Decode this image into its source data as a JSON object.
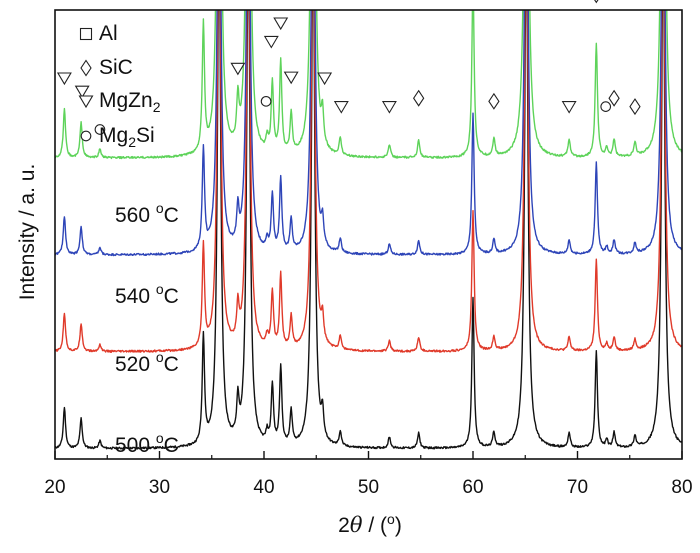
{
  "chart_data": {
    "type": "line",
    "xlabel_parts": {
      "prefix": "2",
      "theta": "θ",
      "sep": " / (",
      "deg": "o",
      "close": ")"
    },
    "ylabel": "Intensity / a. u.",
    "xlim": [
      20,
      80
    ],
    "xticks": [
      "20",
      "30",
      "40",
      "50",
      "60",
      "70",
      "80"
    ],
    "grid": false,
    "legend_position": "top-left (inside plot)",
    "legend": [
      {
        "marker": "square-icon",
        "text": "Al"
      },
      {
        "marker": "diamond-icon",
        "text": "SiC"
      },
      {
        "marker": "triangle-down-icon",
        "text": "MgZn",
        "sub": "2"
      },
      {
        "marker": "circle-icon",
        "text": "Mg",
        "sub": "2",
        "tail": "Si"
      }
    ],
    "series": [
      {
        "name": "560 °C",
        "label_value": "560",
        "label_unit": "C",
        "color": "#5ed35a",
        "offset": 0.66,
        "height_scale": 1.0
      },
      {
        "name": "540 °C",
        "label_value": "540",
        "label_unit": "C",
        "color": "#2e45b8",
        "offset": 0.44,
        "height_scale": 0.8
      },
      {
        "name": "520 °C",
        "label_value": "520",
        "label_unit": "C",
        "color": "#e03a2a",
        "offset": 0.22,
        "height_scale": 0.8
      },
      {
        "name": "500 °C",
        "label_value": "500",
        "label_unit": "C",
        "color": "#111111",
        "offset": 0.0,
        "height_scale": 0.85
      }
    ],
    "peaks": [
      {
        "x": 20.9,
        "h": 0.11,
        "phase": "MgZn2"
      },
      {
        "x": 22.5,
        "h": 0.08,
        "phase": "MgZn2"
      },
      {
        "x": 24.3,
        "h": 0.02,
        "phase": "Mg2Si"
      },
      {
        "x": 34.2,
        "h": 0.29,
        "phase": "SiC"
      },
      {
        "x": 35.7,
        "h": 1.4,
        "phase": "SiC"
      },
      {
        "x": 37.5,
        "h": 0.1,
        "phase": "MgZn2"
      },
      {
        "x": 38.5,
        "h": 1.4,
        "phase": "Al"
      },
      {
        "x": 40.3,
        "h": 0.03,
        "phase": "Mg2Si"
      },
      {
        "x": 40.8,
        "h": 0.16,
        "phase": "MgZn2"
      },
      {
        "x": 41.6,
        "h": 0.21,
        "phase": "MgZn2"
      },
      {
        "x": 42.6,
        "h": 0.09,
        "phase": "MgZn2"
      },
      {
        "x": 44.7,
        "h": 1.4,
        "phase": "Al"
      },
      {
        "x": 45.6,
        "h": 0.07,
        "phase": "MgZn2"
      },
      {
        "x": 47.3,
        "h": 0.04,
        "phase": "MgZn2"
      },
      {
        "x": 52.0,
        "h": 0.03,
        "phase": "MgZn2"
      },
      {
        "x": 54.8,
        "h": 0.04,
        "phase": "SiC"
      },
      {
        "x": 60.0,
        "h": 0.4,
        "phase": "SiC"
      },
      {
        "x": 62.0,
        "h": 0.04,
        "phase": "SiC"
      },
      {
        "x": 65.1,
        "h": 1.4,
        "phase": "Al"
      },
      {
        "x": 69.2,
        "h": 0.04,
        "phase": "MgZn2"
      },
      {
        "x": 71.8,
        "h": 0.26,
        "phase": "SiC"
      },
      {
        "x": 72.8,
        "h": 0.02,
        "phase": "Mg2Si"
      },
      {
        "x": 73.5,
        "h": 0.04,
        "phase": "SiC"
      },
      {
        "x": 75.5,
        "h": 0.03,
        "phase": "SiC"
      },
      {
        "x": 78.2,
        "h": 1.4,
        "phase": "Al"
      }
    ],
    "markers": [
      {
        "x": 20.9,
        "y": 0.85,
        "symbol": "triangle-down-icon"
      },
      {
        "x": 22.6,
        "y": 0.82,
        "symbol": "triangle-down-icon"
      },
      {
        "x": 24.3,
        "y": 0.733,
        "symbol": "circle-icon"
      },
      {
        "x": 34.1,
        "y": 1.057,
        "symbol": "diamond-icon"
      },
      {
        "x": 35.9,
        "y": 1.18,
        "symbol": "diamond-icon"
      },
      {
        "x": 37.5,
        "y": 0.872,
        "symbol": "triangle-down-icon"
      },
      {
        "x": 38.5,
        "y": 1.143,
        "symbol": "square-icon"
      },
      {
        "x": 40.2,
        "y": 0.797,
        "symbol": "circle-icon"
      },
      {
        "x": 40.7,
        "y": 0.933,
        "symbol": "triangle-down-icon"
      },
      {
        "x": 41.6,
        "y": 0.975,
        "symbol": "triangle-down-icon"
      },
      {
        "x": 42.6,
        "y": 0.852,
        "symbol": "triangle-down-icon"
      },
      {
        "x": 44.5,
        "y": 1.161,
        "symbol": "square-icon"
      },
      {
        "x": 45.8,
        "y": 0.85,
        "symbol": "triangle-down-icon"
      },
      {
        "x": 47.4,
        "y": 0.785,
        "symbol": "triangle-down-icon"
      },
      {
        "x": 52.0,
        "y": 0.785,
        "symbol": "triangle-down-icon"
      },
      {
        "x": 54.8,
        "y": 0.804,
        "symbol": "diamond-icon"
      },
      {
        "x": 60.0,
        "y": 1.116,
        "symbol": "diamond-icon"
      },
      {
        "x": 62.0,
        "y": 0.797,
        "symbol": "diamond-icon"
      },
      {
        "x": 65.1,
        "y": 1.176,
        "symbol": "square-icon"
      },
      {
        "x": 69.2,
        "y": 0.785,
        "symbol": "triangle-down-icon"
      },
      {
        "x": 71.8,
        "y": 1.039,
        "symbol": "diamond-icon"
      },
      {
        "x": 72.7,
        "y": 0.785,
        "symbol": "circle-icon"
      },
      {
        "x": 73.5,
        "y": 0.804,
        "symbol": "diamond-icon"
      },
      {
        "x": 75.5,
        "y": 0.785,
        "symbol": "diamond-icon"
      },
      {
        "x": 78.2,
        "y": 1.161,
        "symbol": "square-icon"
      }
    ]
  }
}
